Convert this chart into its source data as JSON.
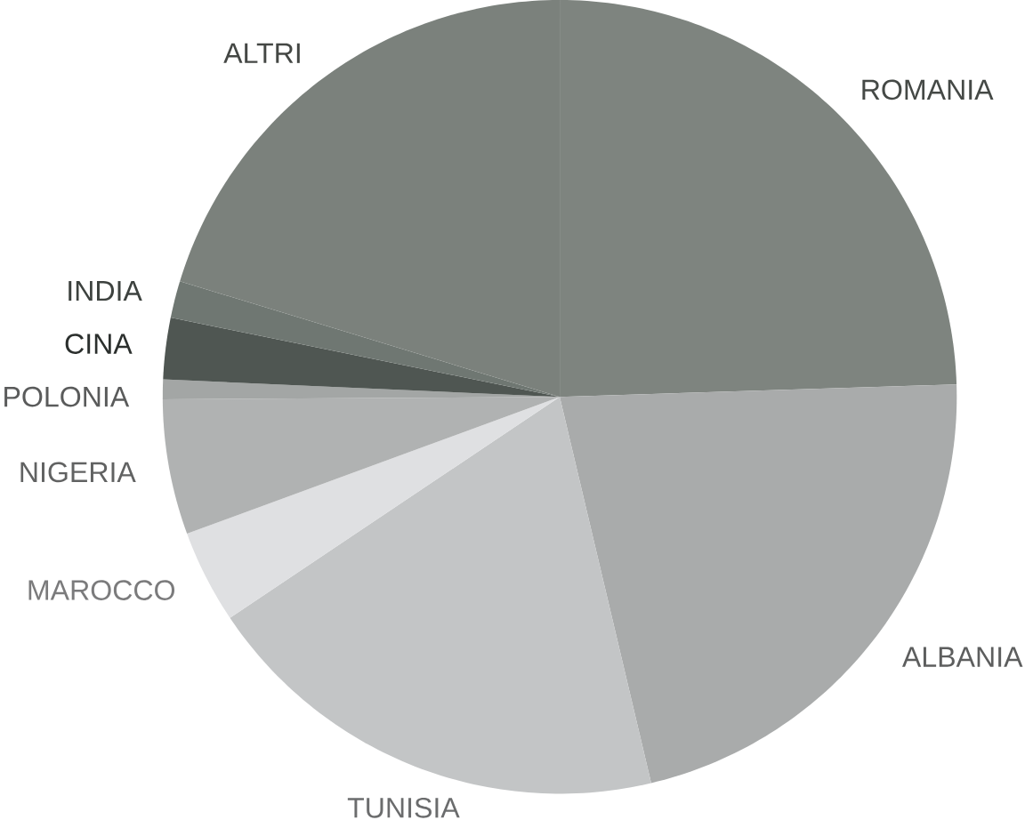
{
  "chart_data": {
    "type": "pie",
    "categories": [
      "ROMANIA",
      "ALBANIA",
      "TUNISIA",
      "MAROCCO",
      "NIGERIA",
      "POLONIA",
      "CINA",
      "INDIA",
      "ALTRI"
    ],
    "values": [
      24.5,
      21.8,
      19.3,
      3.8,
      5.5,
      0.8,
      2.5,
      1.5,
      20.3
    ],
    "colors": [
      "#7e847f",
      "#a9abab",
      "#c3c5c6",
      "#dfe0e2",
      "#b0b2b2",
      "#a3a6a5",
      "#4f5652",
      "#6f7772",
      "#7b817c"
    ]
  }
}
